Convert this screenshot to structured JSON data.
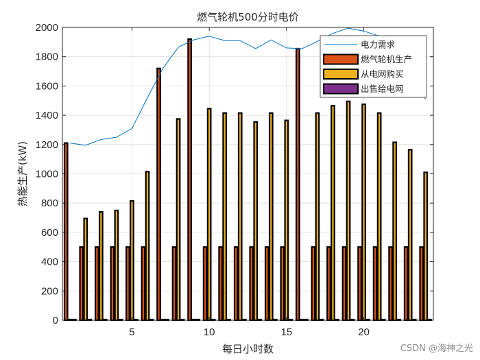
{
  "chart_data": {
    "type": "bar",
    "title": "燃气轮机500分时电价",
    "xlabel": "每日小时数",
    "ylabel": "热能生产(kW)",
    "xlim": [
      0.5,
      24.5
    ],
    "ylim": [
      0,
      2000
    ],
    "xticks": [
      5,
      10,
      15,
      20
    ],
    "yticks": [
      0,
      200,
      400,
      600,
      800,
      1000,
      1200,
      1400,
      1600,
      1800,
      2000
    ],
    "grid": true,
    "legend_position": "top-right",
    "categories": [
      1,
      2,
      3,
      4,
      5,
      6,
      7,
      8,
      9,
      10,
      11,
      12,
      13,
      14,
      15,
      16,
      17,
      18,
      19,
      20,
      21,
      22,
      23,
      24
    ],
    "line": {
      "name": "电力需求",
      "color": "#0072BD",
      "values": [
        1210,
        1195,
        1235,
        1250,
        1310,
        1520,
        1720,
        1865,
        1915,
        1940,
        1910,
        1910,
        1855,
        1915,
        1860,
        1855,
        1905,
        1960,
        1995,
        1975,
        1940,
        1830,
        1660,
        1510
      ]
    },
    "series": [
      {
        "name": "燃气轮机生产",
        "color": "#D95319",
        "values": [
          1210,
          500,
          500,
          500,
          500,
          500,
          1720,
          500,
          1920,
          500,
          500,
          500,
          500,
          500,
          500,
          1855,
          500,
          500,
          500,
          500,
          500,
          500,
          500,
          500
        ]
      },
      {
        "name": "从电网购买",
        "color": "#EDB120",
        "values": [
          0,
          695,
          740,
          750,
          815,
          1015,
          0,
          1375,
          0,
          1445,
          1415,
          1415,
          1355,
          1415,
          1365,
          0,
          1415,
          1465,
          1495,
          1475,
          1415,
          1215,
          1165,
          1010
        ]
      },
      {
        "name": "出售给电网",
        "color": "#7E2F8E",
        "values": [
          0,
          0,
          0,
          0,
          0,
          0,
          0,
          0,
          0,
          0,
          0,
          0,
          0,
          0,
          0,
          0,
          0,
          0,
          0,
          0,
          0,
          0,
          0,
          0
        ]
      }
    ]
  },
  "watermark": "CSDN @海神之光"
}
